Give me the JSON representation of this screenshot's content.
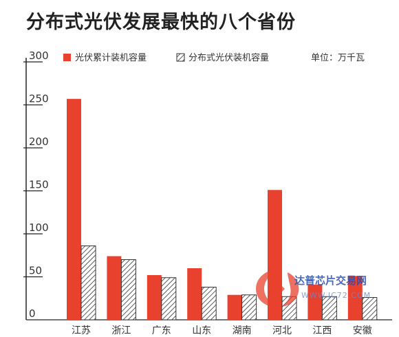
{
  "chart_data": {
    "type": "bar",
    "title": "分布式光伏发展最快的八个省份",
    "unit_label": "单位：万千瓦",
    "categories": [
      "江苏",
      "浙江",
      "广东",
      "山东",
      "湖南",
      "河北",
      "江西",
      "安徽"
    ],
    "series": [
      {
        "name": "光伏累计装机容量",
        "values": [
          257,
          74,
          52,
          60,
          29,
          151,
          41,
          51
        ],
        "color": "#e8412e",
        "pattern": "solid"
      },
      {
        "name": "分布式光伏装机容量",
        "values": [
          86,
          70,
          49,
          38,
          29,
          27,
          27,
          26
        ],
        "color": "#333333",
        "pattern": "hatched"
      }
    ],
    "yticks": [
      0,
      50,
      100,
      150,
      200,
      250,
      300
    ],
    "ylim": [
      0,
      300
    ],
    "grid": false,
    "legend_position": "top"
  },
  "watermark": {
    "text": "达普芯片交易网",
    "url": "WWW.IC72.COM"
  }
}
